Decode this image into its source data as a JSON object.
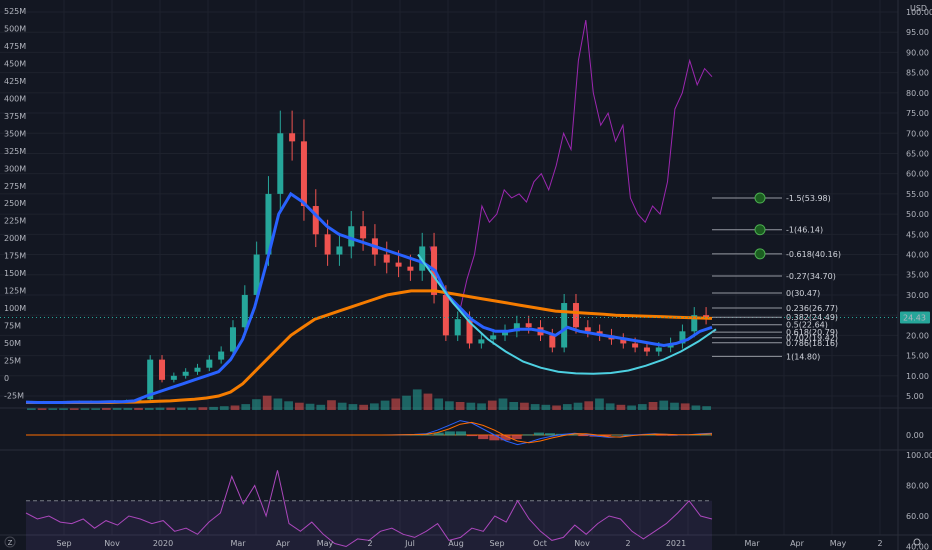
{
  "chart_data": {
    "type": "line",
    "x_ticks": [
      "Sep",
      "Nov",
      "2020",
      "Mar",
      "Apr",
      "May",
      "2",
      "Jul",
      "Aug",
      "Sep",
      "Oct",
      "Nov",
      "2",
      "2021",
      "Mar",
      "Apr",
      "May",
      "2"
    ],
    "volume_axis": [
      "525M",
      "500M",
      "475M",
      "450M",
      "425M",
      "400M",
      "375M",
      "350M",
      "325M",
      "300M",
      "275M",
      "250M",
      "225M",
      "200M",
      "175M",
      "150M",
      "125M",
      "100M",
      "75M",
      "50M",
      "25M",
      "0",
      "-25M"
    ],
    "price_axis": {
      "unit": "USD",
      "ticks": [
        "100.00",
        "95.00",
        "90.00",
        "85.00",
        "80.00",
        "75.00",
        "70.00",
        "65.00",
        "60.00",
        "55.00",
        "50.00",
        "45.00",
        "40.00",
        "35.00",
        "30.00",
        "25.00",
        "20.00",
        "15.00",
        "10.00",
        "5.00"
      ],
      "last_price": "24.43",
      "last_price_color": "#26a69a"
    },
    "macd_axis": [
      "0.00"
    ],
    "rsi_axis": [
      "100.00",
      "80.00",
      "60.00",
      "40.00"
    ],
    "fib_levels": [
      {
        "label": "-1.5(53.98)",
        "value": 53.98,
        "marker": true
      },
      {
        "label": "-1(46.14)",
        "value": 46.14,
        "marker": true
      },
      {
        "label": "-0.618(40.16)",
        "value": 40.16,
        "marker": true
      },
      {
        "label": "-0.27(34.70)",
        "value": 34.7,
        "marker": false
      },
      {
        "label": "0(30.47)",
        "value": 30.47,
        "marker": false
      },
      {
        "label": "0.236(26.77)",
        "value": 26.77,
        "marker": false
      },
      {
        "label": "0.382(24.49)",
        "value": 24.49,
        "marker": false
      },
      {
        "label": "0.5(22.64)",
        "value": 22.64,
        "marker": false
      },
      {
        "label": "0.618(20.79)",
        "value": 20.79,
        "marker": false
      },
      {
        "label": "0.702(19.42)",
        "value": 19.42,
        "marker": false
      },
      {
        "label": "0.786(18.16)",
        "value": 18.16,
        "marker": false
      },
      {
        "label": "1(14.80)",
        "value": 14.8,
        "marker": false
      }
    ],
    "series": [
      {
        "name": "price",
        "color": "#26a69a",
        "values": [
          3.5,
          3.4,
          3.3,
          3.5,
          3.6,
          3.4,
          3.5,
          3.7,
          3.8,
          4.2,
          14,
          9,
          10,
          11,
          12,
          14,
          16,
          22,
          30,
          40,
          55,
          70,
          68,
          52,
          45,
          40,
          42,
          47,
          44,
          40,
          38,
          37,
          36,
          42,
          30,
          20,
          24,
          18,
          19,
          20,
          21,
          23,
          22,
          20,
          17,
          28,
          22,
          21,
          20,
          19,
          18,
          17,
          16,
          17,
          18,
          21,
          25,
          24.43
        ]
      },
      {
        "name": "ema-fast",
        "color": "#2962ff",
        "values": [
          3.5,
          3.4,
          3.4,
          3.4,
          3.5,
          3.5,
          3.5,
          3.6,
          3.6,
          3.8,
          5,
          6,
          7,
          8,
          9,
          10,
          11,
          14,
          19,
          27,
          38,
          50,
          55,
          53,
          50,
          47,
          45,
          44,
          43,
          42,
          41,
          40,
          39,
          38,
          36,
          30,
          27,
          24,
          22,
          21,
          21,
          21.5,
          21.5,
          21,
          20,
          22,
          21,
          20.5,
          20,
          19.5,
          19,
          18.5,
          18,
          17.5,
          18,
          19,
          21,
          22
        ]
      },
      {
        "name": "ema-slow",
        "color": "#f57c00",
        "values": [
          3.4,
          3.4,
          3.4,
          3.4,
          3.4,
          3.4,
          3.4,
          3.4,
          3.5,
          3.5,
          3.6,
          3.7,
          3.8,
          4,
          4.2,
          4.5,
          5,
          6,
          8,
          11,
          14,
          17,
          20,
          22,
          24,
          25,
          26,
          27,
          28,
          29,
          30,
          30.5,
          31,
          31,
          31,
          30.5,
          30,
          29.5,
          29,
          28.5,
          28,
          27.5,
          27,
          26.5,
          26,
          25.8,
          25.6,
          25.4,
          25.2,
          25,
          24.9,
          24.8,
          24.7,
          24.6,
          24.5,
          24.4,
          24.3,
          24.2
        ]
      },
      {
        "name": "cup-arc",
        "color": "#4dd0e1",
        "values": [
          40,
          34,
          28,
          23,
          19,
          16,
          13.5,
          12,
          11,
          10.6,
          10.5,
          10.7,
          11.3,
          12.5,
          14,
          16,
          18.5,
          21.5
        ]
      },
      {
        "name": "oscillator",
        "color": "#9c27b0",
        "values": [
          42,
          35,
          30,
          28,
          26,
          34,
          40,
          52,
          48,
          50,
          56,
          54,
          55,
          53,
          58,
          60,
          56,
          62,
          70,
          66,
          88,
          98,
          80,
          72,
          75,
          68,
          72,
          54,
          50,
          48,
          52,
          50,
          58,
          76,
          80,
          88,
          82,
          86,
          84
        ]
      },
      {
        "name": "rsi",
        "color": "#ab47bc",
        "values": [
          62,
          58,
          60,
          56,
          55,
          58,
          52,
          57,
          54,
          60,
          58,
          55,
          57,
          50,
          52,
          48,
          56,
          62,
          86,
          68,
          80,
          60,
          90,
          55,
          50,
          56,
          48,
          42,
          40,
          45,
          44,
          50,
          52,
          48,
          46,
          50,
          55,
          44,
          46,
          52,
          50,
          60,
          56,
          70,
          58,
          50,
          44,
          46,
          54,
          48,
          55,
          60,
          58,
          50,
          45,
          50,
          55,
          62,
          70,
          60,
          58
        ]
      },
      {
        "name": "macd",
        "color": "#2962ff",
        "values": [
          0,
          0,
          0,
          0,
          0,
          0,
          0,
          0,
          0.01,
          0.05,
          0.1,
          0.2,
          0.8,
          1.6,
          2.4,
          2.0,
          1.0,
          0,
          -1.0,
          -1.6,
          -1.2,
          -0.6,
          -0.2,
          0.1,
          0.3,
          0.1,
          -0.2,
          -0.4,
          -0.3,
          0,
          0.1,
          0.2,
          0.1,
          0,
          0.05,
          0.2,
          0.3
        ]
      },
      {
        "name": "signal",
        "color": "#ff6d00",
        "values": [
          0,
          0,
          0,
          0,
          0,
          0,
          0,
          0,
          0,
          0.03,
          0.06,
          0.12,
          0.4,
          1.0,
          1.8,
          2.1,
          1.6,
          0.8,
          -0.2,
          -1.0,
          -1.3,
          -1.0,
          -0.5,
          -0.1,
          0.2,
          0.2,
          0,
          -0.3,
          -0.35,
          -0.1,
          0.05,
          0.15,
          0.12,
          0.05,
          0.03,
          0.12,
          0.22
        ]
      }
    ],
    "volume_values": [
      2,
      2,
      2,
      2,
      2,
      2,
      2,
      3,
      3,
      3,
      3,
      3,
      4,
      4,
      4,
      4,
      5,
      6,
      8,
      10,
      14,
      28,
      38,
      30,
      22,
      18,
      15,
      12,
      25,
      18,
      14,
      12,
      16,
      24,
      30,
      38,
      56,
      44,
      30,
      22,
      20,
      18,
      16,
      24,
      30,
      20,
      18,
      14,
      12,
      10,
      14,
      18,
      22,
      30,
      16,
      12,
      10,
      14,
      20,
      24,
      18,
      16,
      10,
      8
    ]
  }
}
